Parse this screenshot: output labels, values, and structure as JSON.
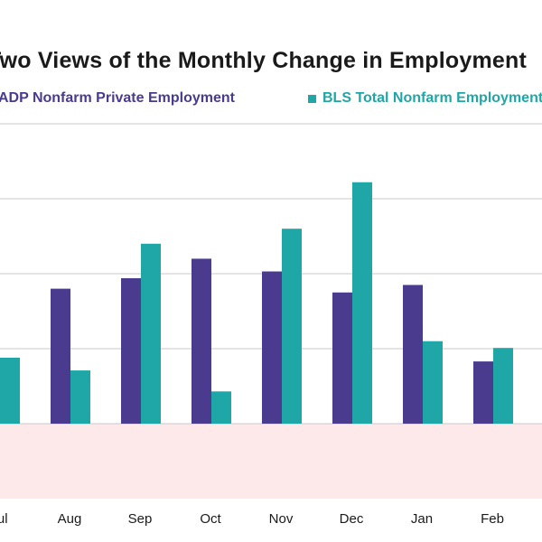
{
  "chart_data": {
    "type": "bar",
    "title": "Two Views of the Monthly Change in Employment",
    "categories": [
      "Jul",
      "Aug",
      "Sep",
      "Oct",
      "Nov",
      "Dec",
      "Jan",
      "Feb"
    ],
    "series": [
      {
        "name": "ADP Nonfarm Private Employment",
        "color": "#4a3b8f",
        "values": [
          null,
          180,
          194,
          220,
          203,
          175,
          185,
          83
        ]
      },
      {
        "name": "BLS Total Nonfarm Employment",
        "color": "#1fa7a7",
        "values": [
          88,
          71,
          240,
          43,
          260,
          322,
          110,
          101
        ]
      }
    ],
    "ylim": [
      -100,
      400
    ],
    "grid": true,
    "legend_position": "top",
    "shaded_region": {
      "from": -100,
      "to": 0,
      "color": "#fde8ea"
    }
  }
}
